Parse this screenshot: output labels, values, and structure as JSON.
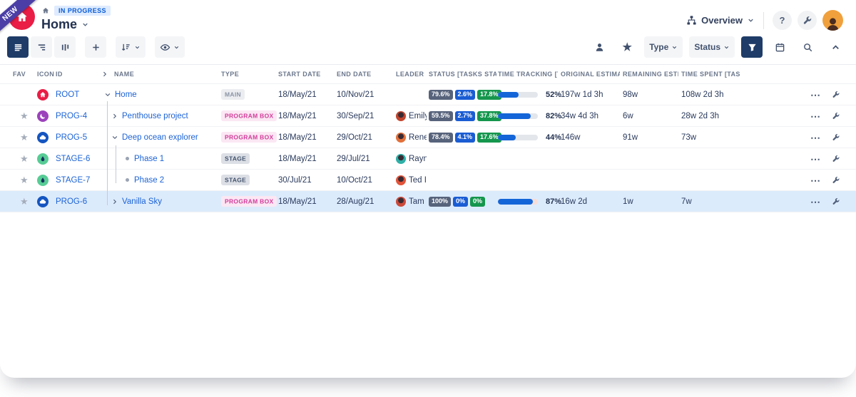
{
  "app": {
    "ribbon_label": "NEW",
    "breadcrumb_status": "IN PROGRESS",
    "title": "Home",
    "overview_label": "Overview",
    "help_label": "?"
  },
  "toolbar": {
    "type_label": "Type",
    "status_label": "Status"
  },
  "table": {
    "columns": [
      "FAV",
      "ICON",
      "ID",
      "NAME",
      "TYPE",
      "START DATE",
      "END DATE",
      "LEADER",
      "STATUS [TASKS STAT",
      "TIME TRACKING [TAS",
      "ORIGINAL ESTIMA",
      "REMAINING ESTIM",
      "TIME SPENT [TAS"
    ],
    "rows": [
      {
        "id": "ROOT",
        "icon": "home",
        "icon_color": "#e91d45",
        "depth": 0,
        "connector": "expanded",
        "name": "Home",
        "type": "MAIN",
        "type_style": "main",
        "start": "18/May/21",
        "end": "10/Nov/21",
        "leader": null,
        "status": [
          "79.6%",
          "2.6%",
          "17.8%"
        ],
        "tracking": {
          "pct": 52,
          "label": "52%",
          "over": false
        },
        "original": "197w 1d 3h",
        "remaining": "98w",
        "spent": "108w 2d 3h",
        "fav": false,
        "selected": false
      },
      {
        "id": "PROG-4",
        "icon": "moon",
        "icon_color": "#9c42bc",
        "depth": 1,
        "connector": "collapsed",
        "name": "Penthouse project",
        "type": "PROGRAM BOX",
        "type_style": "program",
        "start": "18/May/21",
        "end": "30/Sep/21",
        "leader": {
          "name": "Emily",
          "color": "#c2452d"
        },
        "status": [
          "59.5%",
          "2.7%",
          "37.8%"
        ],
        "tracking": {
          "pct": 82,
          "label": "82%",
          "over": false
        },
        "original": "34w 4d 3h",
        "remaining": "6w",
        "spent": "28w 2d 3h",
        "fav": true,
        "selected": false
      },
      {
        "id": "PROG-5",
        "icon": "cloud",
        "icon_color": "#1455c0",
        "depth": 1,
        "connector": "expanded",
        "name": "Deep ocean explorer",
        "type": "PROGRAM BOX",
        "type_style": "program",
        "start": "18/May/21",
        "end": "29/Oct/21",
        "leader": {
          "name": "Rene",
          "color": "#e2703a"
        },
        "status": [
          "78.4%",
          "4.1%",
          "17.6%"
        ],
        "tracking": {
          "pct": 44,
          "label": "44%",
          "over": false
        },
        "original": "146w",
        "remaining": "91w",
        "spent": "73w",
        "fav": true,
        "selected": false
      },
      {
        "id": "STAGE-6",
        "icon": "droplet",
        "icon_color": "#57cc95",
        "depth": 2,
        "connector": "leaf",
        "name": "Phase 1",
        "type": "STAGE",
        "type_style": "stage",
        "start": "18/May/21",
        "end": "29/Jul/21",
        "leader": {
          "name": "Rayn",
          "color": "#2fb0a8"
        },
        "status": null,
        "tracking": null,
        "original": "",
        "remaining": "",
        "spent": "",
        "fav": true,
        "selected": false
      },
      {
        "id": "STAGE-7",
        "icon": "droplet",
        "icon_color": "#57cc95",
        "depth": 2,
        "connector": "leaf",
        "name": "Phase 2",
        "type": "STAGE",
        "type_style": "stage",
        "start": "30/Jul/21",
        "end": "10/Oct/21",
        "leader": {
          "name": "Ted I",
          "color": "#e2543a"
        },
        "status": null,
        "tracking": null,
        "original": "",
        "remaining": "",
        "spent": "",
        "fav": true,
        "selected": false
      },
      {
        "id": "PROG-6",
        "icon": "cloud",
        "icon_color": "#1455c0",
        "depth": 1,
        "connector": "collapsed",
        "name": "Vanilla Sky",
        "type": "PROGRAM BOX",
        "type_style": "program",
        "start": "18/May/21",
        "end": "28/Aug/21",
        "leader": {
          "name": "Tam",
          "color": "#cc4a3a"
        },
        "status": [
          "100%",
          "0%",
          "0%"
        ],
        "tracking": {
          "pct": 87,
          "label": "87%",
          "over": true
        },
        "original": "16w 2d",
        "remaining": "1w",
        "spent": "7w",
        "fav": true,
        "selected": true
      }
    ]
  },
  "colors": {
    "accent_navy": "#1f3c68",
    "link_blue": "#1c63d6",
    "selected_row": "#dcebfc",
    "progress_fill": "#1465d8",
    "status_badge_colors": [
      "#57637b",
      "#1a5cd3",
      "#15964d"
    ],
    "type_badges": {
      "main": {
        "fg": "#8a93a5",
        "bg": "#ebedf0"
      },
      "program": {
        "fg": "#d23d9a",
        "bg": "#fbe7f4"
      },
      "stage": {
        "fg": "#44546f",
        "bg": "#dcdfe5"
      }
    },
    "ribbon_purple": "#4b3fa7",
    "logo_red": "#e91d45"
  }
}
